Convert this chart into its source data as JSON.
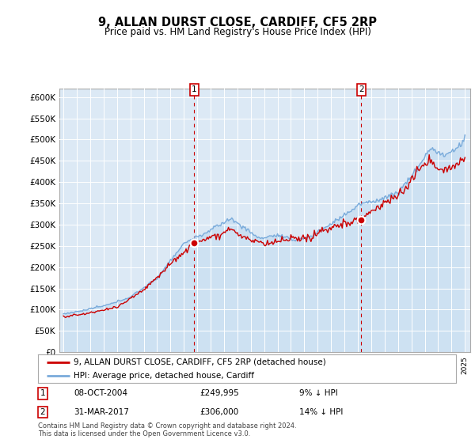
{
  "title": "9, ALLAN DURST CLOSE, CARDIFF, CF5 2RP",
  "subtitle": "Price paid vs. HM Land Registry's House Price Index (HPI)",
  "title_fontsize": 10,
  "subtitle_fontsize": 8.5,
  "hpi_color": "#7aabdb",
  "hpi_fill": "#c8dff2",
  "price_color": "#cc0000",
  "marker_color": "#cc0000",
  "bg_color": "#dce9f5",
  "ylim": [
    0,
    620000
  ],
  "yticks": [
    0,
    50000,
    100000,
    150000,
    200000,
    250000,
    300000,
    350000,
    400000,
    450000,
    500000,
    550000,
    600000
  ],
  "ytick_labels": [
    "£0",
    "£50K",
    "£100K",
    "£150K",
    "£200K",
    "£250K",
    "£300K",
    "£350K",
    "£400K",
    "£450K",
    "£500K",
    "£550K",
    "£600K"
  ],
  "sale1_date": 2004.78,
  "sale1_price": 249995,
  "sale1_label": "1",
  "sale2_date": 2017.25,
  "sale2_price": 306000,
  "sale2_label": "2",
  "legend_entry1": "9, ALLAN DURST CLOSE, CARDIFF, CF5 2RP (detached house)",
  "legend_entry2": "HPI: Average price, detached house, Cardiff",
  "annotation1_date": "08-OCT-2004",
  "annotation1_price": "£249,995",
  "annotation1_pct": "9% ↓ HPI",
  "annotation2_date": "31-MAR-2017",
  "annotation2_price": "£306,000",
  "annotation2_pct": "14% ↓ HPI",
  "footer": "Contains HM Land Registry data © Crown copyright and database right 2024.\nThis data is licensed under the Open Government Licence v3.0."
}
